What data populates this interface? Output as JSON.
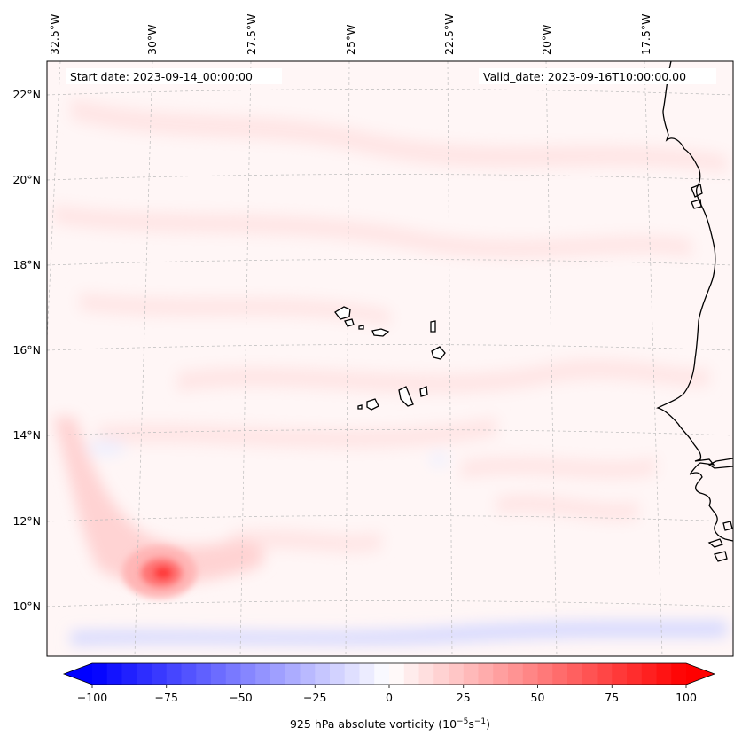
{
  "map": {
    "start_date": "Start date: 2023-09-14_00:00:00",
    "valid_date": "Valid_date: 2023-09-16T10:00:00.00",
    "lon_labels": [
      "32.5°W",
      "30°W",
      "27.5°W",
      "25°W",
      "22.5°W",
      "20°W",
      "17.5°W"
    ],
    "lat_labels": [
      "22°N",
      "20°N",
      "18°N",
      "16°N",
      "14°N",
      "12°N",
      "10°N"
    ],
    "features": {
      "max_vorticity_center": "≈ 10.8°N, 29.7°W",
      "islands": "Cape Verde Islands",
      "coastline": "West African coast (Senegal, Mauritania, Guinea-Bissau)"
    }
  },
  "colorbar": {
    "tick_labels": [
      "−100",
      "−75",
      "−50",
      "−25",
      "0",
      "25",
      "50",
      "75",
      "100"
    ],
    "tick_values": [
      -100,
      -75,
      -50,
      -25,
      0,
      25,
      50,
      75,
      100
    ],
    "min": -100,
    "max": 100,
    "step": 5,
    "label_main": "925 hPa absolute vorticity (10",
    "label_exp1": "−5",
    "label_mid": "s",
    "label_exp2": "−1",
    "label_end": ")",
    "colors": {
      "negative": "#0000ff",
      "neutral": "#ffffff",
      "positive": "#ff0000"
    }
  }
}
